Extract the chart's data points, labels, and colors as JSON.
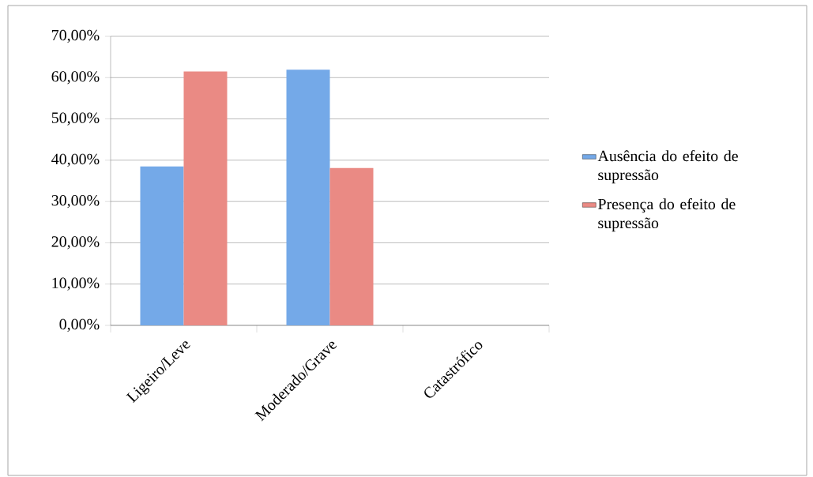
{
  "chart_data": {
    "type": "bar",
    "categories": [
      "Ligeiro/Leve",
      "Moderado/Grave",
      "Catastrófico"
    ],
    "series": [
      {
        "name": "Ausência do efeito de supressão",
        "color": "#74a9e8",
        "values": [
          38.5,
          61.9,
          0
        ]
      },
      {
        "name": "Presença do efeito de supressão",
        "color": "#ea8a84",
        "values": [
          61.5,
          38.1,
          0
        ]
      }
    ],
    "ylim": [
      0,
      70
    ],
    "yticks": [
      {
        "value": 0,
        "label": "0,00%"
      },
      {
        "value": 10,
        "label": "10,00%"
      },
      {
        "value": 20,
        "label": "20,00%"
      },
      {
        "value": 30,
        "label": "30,00%"
      },
      {
        "value": 40,
        "label": "40,00%"
      },
      {
        "value": 50,
        "label": "50,00%"
      },
      {
        "value": 60,
        "label": "60,00%"
      },
      {
        "value": 70,
        "label": "70,00%"
      }
    ],
    "grid": "y",
    "legend": "right"
  }
}
